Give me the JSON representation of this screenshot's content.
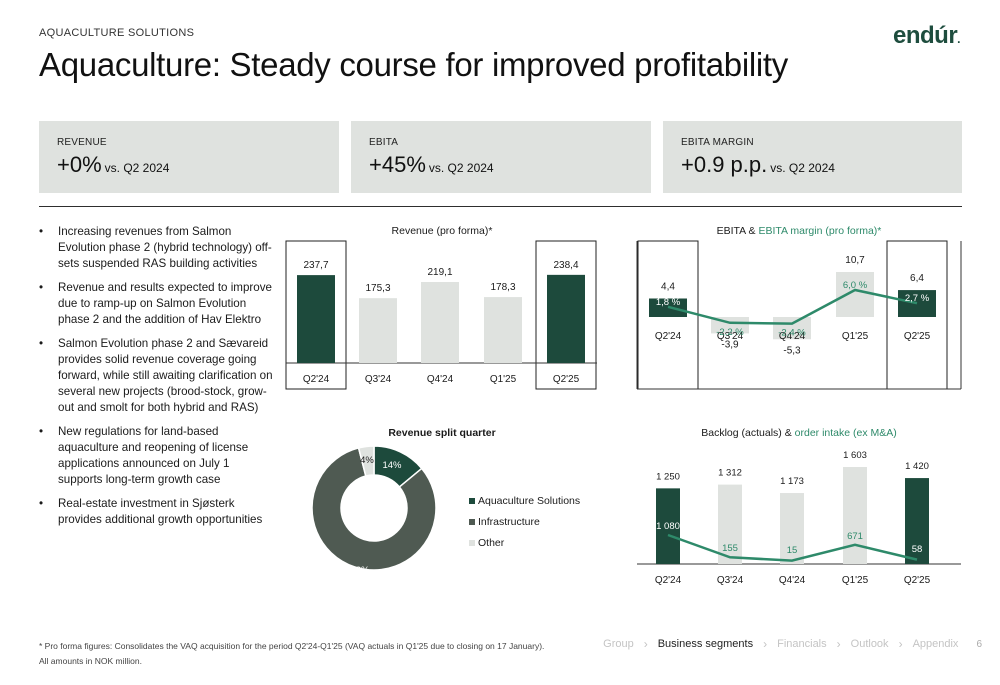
{
  "header": {
    "section_label": "AQUACULTURE SOLUTIONS",
    "title": "Aquaculture: Steady course for improved profitability",
    "logo": "endúr",
    "logo_dot": "."
  },
  "kpis": [
    {
      "label": "REVENUE",
      "value": "+0%",
      "suffix": "vs. Q2 2024"
    },
    {
      "label": "EBITA",
      "value": "+45%",
      "suffix": "vs. Q2 2024"
    },
    {
      "label": "EBITA MARGIN",
      "value": "+0.9 p.p.",
      "suffix": "vs. Q2 2024"
    }
  ],
  "bullets": [
    "Increasing revenues from Salmon Evolution phase 2 (hybrid technology) off-sets suspended RAS building activities",
    "Revenue and results expected to improve due to ramp-up on Salmon Evolution phase 2 and the addition of Hav Elektro",
    "Salmon Evolution phase 2 and Sævareid provides solid revenue coverage going forward, while still awaiting clarification on several new projects (brood-stock, grow-out and smolt for both hybrid and RAS)",
    "New regulations for land-based aquaculture and reopening of license applications announced on July 1 supports long-term growth case",
    "Real-estate investment in Sjøsterk provides additional growth opportunities"
  ],
  "colors": {
    "dark_green": "#1d4a3c",
    "light_grey": "#dfe2df",
    "mid_green": "#2e8a6a",
    "infra_grey": "#4f5a52"
  },
  "chart_data": [
    {
      "type": "bar",
      "title": "Revenue (pro forma)*",
      "categories": [
        "Q2'24",
        "Q3'24",
        "Q4'24",
        "Q1'25",
        "Q2'25"
      ],
      "values": [
        237.7,
        175.3,
        219.1,
        178.3,
        238.4
      ],
      "labels": [
        "237,7",
        "175,3",
        "219,1",
        "178,3",
        "238,4"
      ],
      "highlighted": [
        "Q2'24",
        "Q2'25"
      ],
      "ylim": [
        0,
        260
      ]
    },
    {
      "type": "bar",
      "title": "EBITA",
      "title_accent": "EBITA margin (pro forma)*",
      "title_joiner": "&",
      "categories": [
        "Q2'24",
        "Q3'24",
        "Q4'24",
        "Q1'25",
        "Q2'25"
      ],
      "series": [
        {
          "name": "EBITA",
          "values": [
            4.4,
            -3.9,
            -5.3,
            10.7,
            6.4
          ],
          "labels": [
            "4,4",
            "-3,9",
            "-5,3",
            "10,7",
            "6,4"
          ]
        },
        {
          "name": "EBITA margin",
          "values": [
            1.8,
            -2.2,
            -2.4,
            6.0,
            2.7
          ],
          "labels": [
            "1,8 %",
            "-2,2 %",
            "-2,4 %",
            "6,0 %",
            "2,7 %"
          ]
        }
      ],
      "highlighted": [
        "Q2'24",
        "Q2'25"
      ]
    },
    {
      "type": "pie",
      "title": "Revenue split quarter",
      "slices": [
        {
          "name": "Aquaculture Solutions",
          "value": 14,
          "label": "14%"
        },
        {
          "name": "Infrastructure",
          "value": 82,
          "label": "82%"
        },
        {
          "name": "Other",
          "value": 4,
          "label": "4%"
        }
      ]
    },
    {
      "type": "bar",
      "title": "Backlog (actuals)",
      "title_accent": "order intake (ex M&A)",
      "title_joiner": "&",
      "categories": [
        "Q2'24",
        "Q3'24",
        "Q4'24",
        "Q1'25",
        "Q2'25"
      ],
      "series": [
        {
          "name": "Backlog (actuals)",
          "values": [
            1250,
            1312,
            1173,
            1603,
            1420
          ],
          "labels": [
            "1 250",
            "1 312",
            "1 173",
            "1 603",
            "1 420"
          ]
        },
        {
          "name": "order intake (ex M&A)",
          "values": [
            1080,
            155,
            15,
            671,
            58
          ],
          "labels": [
            "1 080",
            "155",
            "15",
            "671",
            "58"
          ]
        }
      ]
    }
  ],
  "footnote": {
    "line1": "* Pro forma figures: Consolidates the VAQ acquisition for the period Q2'24-Q1'25 (VAQ actuals in Q1'25 due to closing on 17 January).",
    "line2": "All amounts in NOK million."
  },
  "nav": {
    "items": [
      "Group",
      "Business segments",
      "Financials",
      "Outlook",
      "Appendix"
    ],
    "active": "Business segments",
    "page": "6"
  }
}
